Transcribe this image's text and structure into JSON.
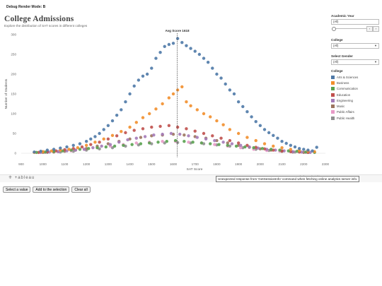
{
  "debug_label": "Debug Render Mode: B",
  "title": "College Admissions",
  "subtitle": "Explore the distribution of SAT scores in different colleges",
  "filters": {
    "academic_year": {
      "label": "Academic Year",
      "value": "(All)"
    },
    "college": {
      "label": "College",
      "value": "(All)"
    },
    "gender": {
      "label": "Select Gender",
      "value": "(All)"
    }
  },
  "legend": {
    "title": "College",
    "items": [
      {
        "name": "Arts & Sciences",
        "color": "#4e79a7"
      },
      {
        "name": "Business",
        "color": "#f28e2b"
      },
      {
        "name": "Communication",
        "color": "#59a14f"
      },
      {
        "name": "Education",
        "color": "#c0504d"
      },
      {
        "name": "Engineering",
        "color": "#a47ab8"
      },
      {
        "name": "Music",
        "color": "#9c755f"
      },
      {
        "name": "Public Affairs",
        "color": "#e89ac7"
      },
      {
        "name": "Public Health",
        "color": "#8f8f8f"
      }
    ]
  },
  "tableau_logo": "+ableau",
  "error_message": "Unexpected response from 'GetSessionInfo' command when fetching online analytics server info.",
  "buttons": {
    "select_value": "Select a value",
    "add_selection": "Add to the selection",
    "clear_all": "Clear all"
  },
  "chart_data": {
    "type": "scatter",
    "xlabel": "SAT Score",
    "ylabel": "Number of Students",
    "xlim": [
      900,
      2300
    ],
    "ylim": [
      0,
      300
    ],
    "xticks": [
      900,
      1000,
      1100,
      1200,
      1300,
      1400,
      1500,
      1600,
      1700,
      1800,
      1900,
      2000,
      2100,
      2200,
      2300
    ],
    "yticks": [
      0,
      50,
      100,
      150,
      200,
      250,
      300
    ],
    "reference_line": {
      "x": 1618,
      "label": "Avg Score 1618"
    },
    "grid": false,
    "series": [
      {
        "name": "Arts & Sciences",
        "x": [
          960,
          990,
          1020,
          1050,
          1080,
          1110,
          1140,
          1170,
          1200,
          1220,
          1240,
          1260,
          1280,
          1300,
          1320,
          1340,
          1360,
          1380,
          1400,
          1420,
          1440,
          1460,
          1480,
          1500,
          1520,
          1540,
          1560,
          1580,
          1600,
          1620,
          1640,
          1660,
          1680,
          1700,
          1720,
          1740,
          1760,
          1780,
          1800,
          1820,
          1840,
          1860,
          1880,
          1900,
          1920,
          1940,
          1960,
          1980,
          2000,
          2020,
          2040,
          2060,
          2080,
          2100,
          2120,
          2140,
          2160,
          2180,
          2200,
          2220,
          2240,
          2260
        ],
        "y": [
          3,
          5,
          8,
          10,
          13,
          16,
          20,
          24,
          30,
          36,
          42,
          50,
          60,
          70,
          82,
          96,
          110,
          130,
          150,
          170,
          185,
          195,
          200,
          215,
          240,
          255,
          270,
          275,
          278,
          290,
          280,
          272,
          265,
          258,
          250,
          240,
          230,
          215,
          200,
          190,
          175,
          160,
          150,
          130,
          118,
          105,
          92,
          80,
          70,
          60,
          52,
          45,
          38,
          30,
          25,
          20,
          16,
          12,
          10,
          8,
          6,
          15
        ]
      },
      {
        "name": "Business",
        "x": [
          960,
          1000,
          1040,
          1080,
          1120,
          1160,
          1200,
          1240,
          1280,
          1320,
          1360,
          1400,
          1430,
          1460,
          1490,
          1520,
          1550,
          1580,
          1600,
          1620,
          1640,
          1660,
          1680,
          1710,
          1740,
          1770,
          1800,
          1830,
          1860,
          1900,
          1940,
          1980,
          2020,
          2060,
          2100,
          2140,
          2180,
          2220,
          2250
        ],
        "y": [
          2,
          4,
          6,
          8,
          10,
          14,
          20,
          28,
          36,
          45,
          55,
          66,
          78,
          90,
          100,
          112,
          125,
          140,
          150,
          160,
          168,
          130,
          120,
          110,
          100,
          92,
          82,
          72,
          60,
          50,
          40,
          32,
          24,
          18,
          14,
          10,
          7,
          5,
          4
        ]
      },
      {
        "name": "Communication",
        "x": [
          970,
          1010,
          1050,
          1090,
          1130,
          1170,
          1210,
          1250,
          1290,
          1330,
          1370,
          1410,
          1450,
          1490,
          1530,
          1570,
          1610,
          1650,
          1690,
          1730,
          1770,
          1810,
          1850,
          1890,
          1930,
          1970,
          2010,
          2050,
          2090,
          2130,
          2170,
          2210,
          2250
        ],
        "y": [
          2,
          3,
          5,
          6,
          8,
          10,
          12,
          14,
          16,
          18,
          20,
          22,
          24,
          26,
          28,
          30,
          32,
          30,
          28,
          26,
          24,
          22,
          20,
          18,
          16,
          14,
          12,
          10,
          8,
          6,
          5,
          3,
          2
        ]
      },
      {
        "name": "Education",
        "x": [
          980,
          1020,
          1060,
          1100,
          1140,
          1180,
          1220,
          1260,
          1300,
          1340,
          1380,
          1420,
          1460,
          1500,
          1540,
          1580,
          1620,
          1660,
          1700,
          1740,
          1780,
          1820,
          1860,
          1900,
          1940,
          1980,
          2020,
          2060,
          2100,
          2140,
          2180,
          2220
        ],
        "y": [
          2,
          4,
          6,
          9,
          12,
          16,
          22,
          28,
          36,
          44,
          52,
          58,
          62,
          66,
          68,
          70,
          66,
          62,
          56,
          50,
          44,
          38,
          32,
          26,
          20,
          15,
          11,
          8,
          6,
          4,
          3,
          2
        ]
      },
      {
        "name": "Engineering",
        "x": [
          990,
          1030,
          1070,
          1110,
          1150,
          1190,
          1230,
          1270,
          1310,
          1350,
          1390,
          1430,
          1470,
          1510,
          1550,
          1590,
          1630,
          1670,
          1710,
          1750,
          1790,
          1830,
          1870,
          1910,
          1950,
          1990,
          2030,
          2070,
          2110,
          2150,
          2190,
          2230
        ],
        "y": [
          2,
          3,
          4,
          6,
          8,
          10,
          14,
          18,
          22,
          28,
          34,
          38,
          42,
          46,
          48,
          50,
          48,
          44,
          40,
          36,
          32,
          28,
          24,
          20,
          16,
          13,
          10,
          8,
          6,
          4,
          3,
          2
        ]
      },
      {
        "name": "Music",
        "x": [
          1000,
          1050,
          1100,
          1150,
          1200,
          1250,
          1300,
          1350,
          1400,
          1450,
          1500,
          1550,
          1600,
          1650,
          1700,
          1750,
          1800,
          1850,
          1900,
          1950,
          2000,
          2050,
          2100,
          2150,
          2200
        ],
        "y": [
          2,
          3,
          5,
          8,
          12,
          18,
          24,
          30,
          36,
          40,
          44,
          46,
          48,
          46,
          42,
          38,
          32,
          26,
          20,
          15,
          11,
          8,
          5,
          3,
          2
        ]
      },
      {
        "name": "Public Affairs",
        "x": [
          1010,
          1070,
          1130,
          1190,
          1250,
          1310,
          1370,
          1430,
          1490,
          1550,
          1610,
          1670,
          1730,
          1790,
          1850,
          1910,
          1970,
          2030,
          2090,
          2150,
          2210
        ],
        "y": [
          2,
          4,
          6,
          10,
          14,
          18,
          22,
          26,
          28,
          30,
          30,
          28,
          26,
          22,
          18,
          14,
          10,
          7,
          5,
          3,
          2
        ]
      },
      {
        "name": "Public Health",
        "x": [
          1020,
          1080,
          1140,
          1200,
          1260,
          1320,
          1380,
          1440,
          1500,
          1560,
          1620,
          1680,
          1740,
          1800,
          1860,
          1920,
          1980,
          2040,
          2100,
          2160,
          2220
        ],
        "y": [
          2,
          3,
          5,
          8,
          11,
          14,
          18,
          21,
          24,
          26,
          27,
          26,
          24,
          21,
          18,
          14,
          10,
          7,
          5,
          3,
          2
        ]
      }
    ]
  }
}
